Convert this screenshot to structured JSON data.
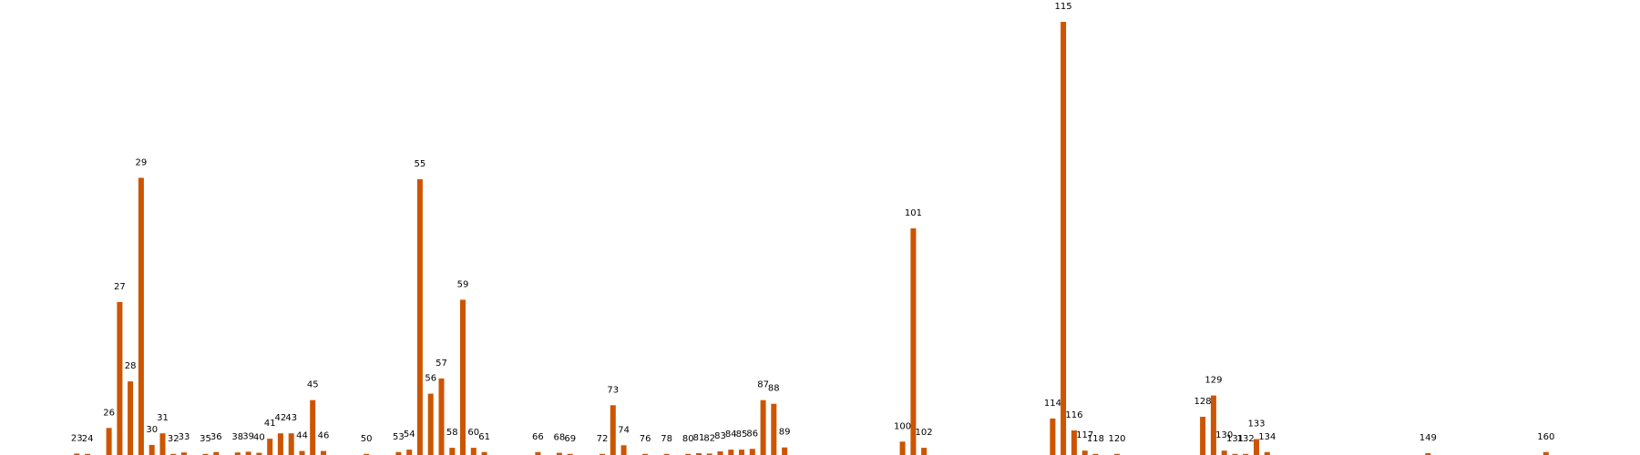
{
  "chart_data": {
    "type": "bar",
    "title": "",
    "xlabel": "",
    "ylabel": "",
    "grid": false,
    "legend": "none",
    "color": "#cc5500",
    "x_range": [
      20,
      162
    ],
    "ylim": [
      0,
      1200
    ],
    "categories": [
      "23",
      "24",
      "26",
      "27",
      "28",
      "29",
      "30",
      "31",
      "32",
      "33",
      "35",
      "36",
      "38",
      "39",
      "40",
      "41",
      "42",
      "43",
      "44",
      "45",
      "46",
      "50",
      "53",
      "54",
      "55",
      "56",
      "57",
      "58",
      "59",
      "60",
      "61",
      "66",
      "68",
      "69",
      "72",
      "73",
      "74",
      "76",
      "78",
      "80",
      "81",
      "82",
      "83",
      "84",
      "85",
      "86",
      "87",
      "88",
      "89",
      "100",
      "101",
      "102",
      "114",
      "115",
      "116",
      "117",
      "118",
      "120",
      "128",
      "129",
      "130",
      "131",
      "132",
      "133",
      "134",
      "149",
      "160"
    ],
    "x": [
      23,
      24,
      26,
      27,
      28,
      29,
      30,
      31,
      32,
      33,
      35,
      36,
      38,
      39,
      40,
      41,
      42,
      43,
      44,
      45,
      46,
      50,
      53,
      54,
      55,
      56,
      57,
      58,
      59,
      60,
      61,
      66,
      68,
      69,
      72,
      73,
      74,
      76,
      78,
      80,
      81,
      82,
      83,
      84,
      85,
      86,
      87,
      88,
      89,
      100,
      101,
      102,
      114,
      115,
      116,
      117,
      118,
      120,
      128,
      129,
      130,
      131,
      132,
      133,
      134,
      149,
      160
    ],
    "values": [
      4,
      3,
      75,
      424,
      204,
      768,
      28,
      60,
      3,
      7,
      3,
      8,
      7,
      9,
      6,
      45,
      60,
      60,
      11,
      152,
      11,
      3,
      8,
      15,
      764,
      170,
      212,
      20,
      430,
      20,
      8,
      8,
      6,
      3,
      3,
      138,
      27,
      3,
      3,
      3,
      5,
      4,
      10,
      15,
      15,
      17,
      152,
      142,
      21,
      37,
      628,
      20,
      101,
      1200,
      68,
      12,
      3,
      3,
      106,
      165,
      12,
      3,
      3,
      44,
      8,
      5,
      8
    ]
  }
}
